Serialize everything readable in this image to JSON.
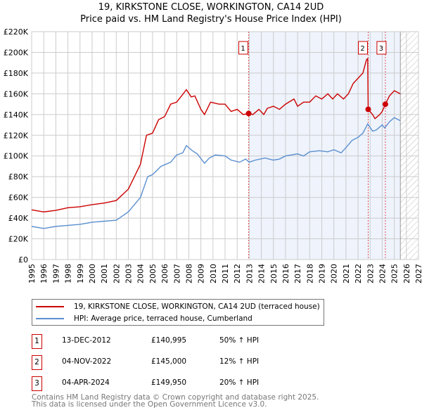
{
  "chart_data": {
    "type": "line",
    "title": "19, KIRKSTONE CLOSE, WORKINGTON, CA14 2UD",
    "subtitle": "Price paid vs. HM Land Registry's House Price Index (HPI)",
    "xlim": [
      1995,
      2027
    ],
    "ylim": [
      0,
      220000
    ],
    "y_ticks": [
      0,
      20000,
      40000,
      60000,
      80000,
      100000,
      120000,
      140000,
      160000,
      180000,
      200000,
      220000
    ],
    "y_tick_labels": [
      "£0",
      "£20K",
      "£40K",
      "£60K",
      "£80K",
      "£100K",
      "£120K",
      "£140K",
      "£160K",
      "£180K",
      "£200K",
      "£220K"
    ],
    "x_tick_labels": [
      "1995",
      "1996",
      "1997",
      "1998",
      "1999",
      "2000",
      "2001",
      "2002",
      "2003",
      "2004",
      "2005",
      "2006",
      "2007",
      "2008",
      "2009",
      "2010",
      "2011",
      "2012",
      "2013",
      "2014",
      "2015",
      "2016",
      "2017",
      "2018",
      "2019",
      "2020",
      "2021",
      "2022",
      "2023",
      "2024",
      "2025",
      "2026",
      "2027"
    ],
    "grid": true,
    "shaded_range": [
      2012.95,
      2025.5
    ],
    "hatched_range": [
      2025.5,
      2027
    ],
    "series": [
      {
        "name": "19, KIRKSTONE CLOSE, WORKINGTON, CA14 2UD (terraced house)",
        "color": "#cc0000",
        "x": [
          1995,
          1996,
          1997,
          1998,
          1999,
          2000,
          2001,
          2002,
          2003,
          2004,
          2004.5,
          2005,
          2005.5,
          2006,
          2006.5,
          2007,
          2007.8,
          2008.2,
          2008.5,
          2009,
          2009.3,
          2009.8,
          2010.5,
          2011,
          2011.5,
          2012,
          2012.5,
          2012.95,
          2013.3,
          2013.8,
          2014.2,
          2014.5,
          2015,
          2015.5,
          2016,
          2016.7,
          2017,
          2017.5,
          2018,
          2018.5,
          2019,
          2019.5,
          2019.9,
          2020.3,
          2020.8,
          2021.2,
          2021.6,
          2022,
          2022.4,
          2022.7,
          2022.8,
          2022.84,
          2023.2,
          2023.4,
          2023.8,
          2024,
          2024.26,
          2024.6,
          2025,
          2025.5
        ],
        "y": [
          48000,
          46000,
          47500,
          50000,
          51000,
          53000,
          54500,
          57000,
          68000,
          92000,
          120000,
          122000,
          135000,
          138000,
          150000,
          152000,
          164000,
          157000,
          158000,
          145000,
          140000,
          152000,
          150000,
          150000,
          143000,
          145000,
          140000,
          141000,
          140000,
          145000,
          140000,
          146000,
          148000,
          145000,
          150000,
          155000,
          148000,
          152000,
          152000,
          158000,
          155000,
          160000,
          155000,
          160000,
          155000,
          160000,
          170000,
          175000,
          180000,
          193000,
          194000,
          145000,
          140000,
          136000,
          140000,
          143000,
          150000,
          158000,
          163000,
          160000
        ]
      },
      {
        "name": "HPI: Average price, terraced house, Cumberland",
        "color": "#5b8fd0",
        "x": [
          1995,
          1996,
          1997,
          1998,
          1999,
          2000,
          2001,
          2002,
          2003,
          2004,
          2004.6,
          2005,
          2005.7,
          2006.5,
          2007,
          2007.5,
          2007.8,
          2008.3,
          2008.7,
          2009.3,
          2009.7,
          2010.2,
          2011,
          2011.5,
          2012.2,
          2012.7,
          2013,
          2013.5,
          2014.3,
          2015,
          2015.5,
          2016,
          2017,
          2017.5,
          2018,
          2018.8,
          2019.5,
          2020,
          2020.6,
          2021,
          2021.5,
          2022,
          2022.4,
          2022.8,
          2023.2,
          2023.5,
          2024,
          2024.2,
          2024.6,
          2025,
          2025.5
        ],
        "y": [
          32000,
          30000,
          32000,
          33000,
          34000,
          36000,
          37000,
          38000,
          46000,
          60000,
          80000,
          82000,
          90000,
          94000,
          101000,
          103000,
          110000,
          105000,
          102000,
          93000,
          98000,
          101000,
          100000,
          96000,
          94000,
          97000,
          94000,
          96000,
          98000,
          96000,
          97000,
          100000,
          102000,
          100000,
          104000,
          105000,
          104000,
          106000,
          103000,
          108000,
          115000,
          118000,
          122000,
          131000,
          124000,
          125000,
          130000,
          127000,
          133000,
          137000,
          134000
        ]
      }
    ],
    "sales": [
      {
        "n": "1",
        "x": 2012.95,
        "y": 140995,
        "date": "13-DEC-2012",
        "price": "£140,995",
        "hpi": "50% ↑ HPI"
      },
      {
        "n": "2",
        "x": 2022.84,
        "y": 145000,
        "date": "04-NOV-2022",
        "price": "£145,000",
        "hpi": "12% ↑ HPI"
      },
      {
        "n": "3",
        "x": 2024.26,
        "y": 149950,
        "date": "04-APR-2024",
        "price": "£149,950",
        "hpi": "20% ↑ HPI"
      }
    ],
    "legend": [
      "19, KIRKSTONE CLOSE, WORKINGTON, CA14 2UD (terraced house)",
      "HPI: Average price, terraced house, Cumberland"
    ],
    "legend_placement": "bottom"
  },
  "footer": [
    "Contains HM Land Registry data © Crown copyright and database right 2025.",
    "This data is licensed under the Open Government Licence v3.0."
  ]
}
